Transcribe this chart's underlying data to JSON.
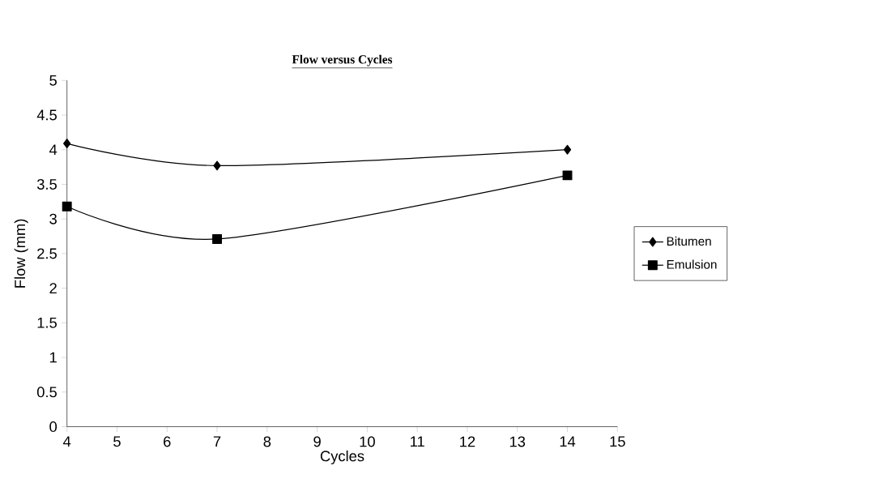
{
  "chart_data": {
    "type": "line",
    "title": "Flow versus Cycles",
    "xlabel": "Cycles",
    "ylabel": "Flow (mm)",
    "x": [
      4,
      7,
      14
    ],
    "series": [
      {
        "name": "Bitumen",
        "color": "#000000",
        "marker": "diamond",
        "values": [
          4.09,
          3.77,
          4.0
        ]
      },
      {
        "name": "Emulsion",
        "color": "#000000",
        "marker": "square",
        "values": [
          3.18,
          2.71,
          3.63
        ]
      }
    ],
    "xlim": [
      4,
      15
    ],
    "xticks": [
      4,
      5,
      6,
      7,
      8,
      9,
      10,
      11,
      12,
      13,
      14,
      15
    ],
    "ylim": [
      0,
      5
    ],
    "yticks": [
      0,
      0.5,
      1,
      1.5,
      2,
      2.5,
      3,
      3.5,
      4,
      4.5,
      5
    ],
    "grid": false,
    "legend": "right",
    "line_style": "solid"
  }
}
